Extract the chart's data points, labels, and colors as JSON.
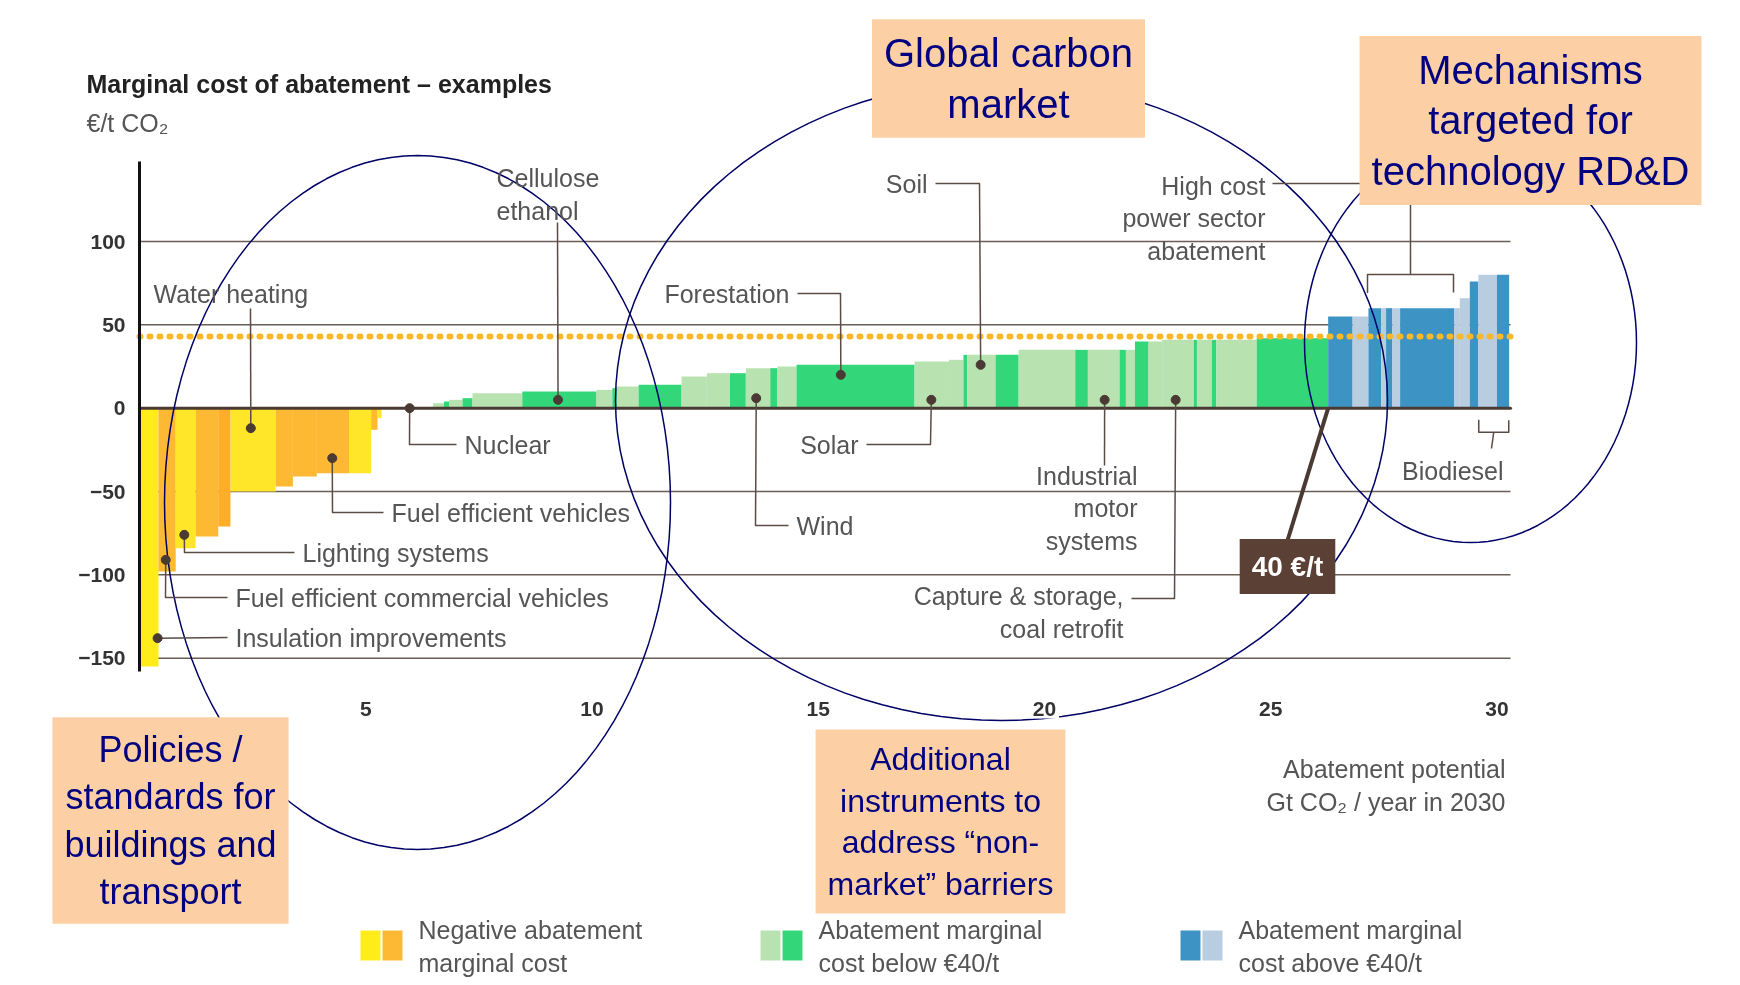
{
  "chart_data": {
    "type": "histogram",
    "title": "Marginal cost of abatement – examples",
    "ylabel": "€/t CO₂",
    "xlabel": "Abatement potential Gt CO₂ / year in 2030",
    "bins": [
      0,
      0.42,
      0.8,
      1.24,
      1.74,
      2.01,
      3.01,
      3.39,
      3.92,
      4.63,
      5.12,
      5.26,
      5.35,
      6.49,
      6.73,
      6.84,
      7.14,
      7.36,
      8.46,
      10.1,
      10.45,
      10.55,
      11.03,
      11.98,
      12.54,
      13.05,
      13.4,
      13.94,
      14.1,
      14.52,
      17.13,
      17.89,
      18.21,
      18.29,
      18.92,
      19.43,
      20.68,
      20.96,
      21.66,
      21.8,
      22.0,
      22.3,
      22.6,
      23.3,
      23.37,
      23.7,
      23.8,
      24.69,
      26.27,
      26.81,
      27.16,
      27.44,
      27.55,
      27.69,
      27.86,
      29.06,
      29.18,
      29.4,
      29.59,
      30.0,
      30.27
    ],
    "series": [
      {
        "name": "Negative abatement marginal cost",
        "values": [
          -155,
          -98,
          -84,
          -77,
          -71,
          -50,
          -47,
          -41,
          -39,
          -39,
          -13,
          -6,
          null,
          null,
          null,
          null,
          null,
          null,
          null,
          null,
          null,
          null,
          null,
          null,
          null,
          null,
          null,
          null,
          null,
          null,
          null,
          null,
          null,
          null,
          null,
          null,
          null,
          null,
          null,
          null,
          null,
          null,
          null,
          null,
          null,
          null,
          null,
          null,
          null,
          null,
          null,
          null,
          null,
          null,
          null,
          null,
          null,
          null,
          null,
          null
        ],
        "colors": [
          "#ffec1a",
          "#fdb933",
          "#ffe629",
          "#fdb933",
          "#fcae2a",
          "#ffe629",
          "#fdb933",
          "#fdb933",
          "#fdb933",
          "#ffe629",
          "#fdb933",
          "#ffe629",
          null,
          null,
          null,
          null,
          null,
          null,
          null,
          null,
          null,
          null,
          null,
          null,
          null,
          null,
          null,
          null,
          null,
          null,
          null,
          null,
          null,
          null,
          null,
          null,
          null,
          null,
          null,
          null,
          null,
          null,
          null,
          null,
          null,
          null,
          null,
          null,
          null,
          null,
          null,
          null,
          null,
          null,
          null,
          null,
          null,
          null,
          null,
          null
        ]
      },
      {
        "name": "Abatement marginal cost below €40/t",
        "values": [
          null,
          null,
          null,
          null,
          null,
          null,
          null,
          null,
          null,
          null,
          null,
          null,
          null,
          3,
          4,
          5,
          6,
          9,
          10,
          11,
          12,
          13,
          14,
          19,
          21,
          21,
          24,
          24,
          25,
          26,
          28,
          29,
          32,
          32,
          32,
          35,
          35,
          35,
          35,
          35,
          40,
          40,
          41,
          41,
          41,
          41,
          41,
          42,
          null,
          null,
          null,
          null,
          null,
          null,
          null,
          null,
          null,
          null,
          null,
          null
        ],
        "colors": [
          null,
          null,
          null,
          null,
          null,
          null,
          null,
          null,
          null,
          null,
          null,
          null,
          null,
          "#b8e3b0",
          "#34d67a",
          "#b8e3b0",
          "#34d67a",
          "#b8e3b0",
          "#34d67a",
          "#b8e3b0",
          "#34d67a",
          "#b8e3b0",
          "#34d67a",
          "#b8e3b0",
          "#b8e3b0",
          "#34d67a",
          "#b8e3b0",
          "#34d67a",
          "#b8e3b0",
          "#34d67a",
          "#b8e3b0",
          "#b8e3b0",
          "#34d67a",
          "#b8e3b0",
          "#34d67a",
          "#b8e3b0",
          "#34d67a",
          "#b8e3b0",
          "#34d67a",
          "#b8e3b0",
          "#34d67a",
          "#b8e3b0",
          "#b8e3b0",
          "#34d67a",
          "#b8e3b0",
          "#34d67a",
          "#b8e3b0",
          "#34d67a",
          null,
          null,
          null,
          null,
          null,
          null,
          null,
          null,
          null,
          null,
          null,
          null
        ]
      },
      {
        "name": "Abatement marginal cost above €40/t",
        "values": [
          null,
          null,
          null,
          null,
          null,
          null,
          null,
          null,
          null,
          null,
          null,
          null,
          null,
          null,
          null,
          null,
          null,
          null,
          null,
          null,
          null,
          null,
          null,
          null,
          null,
          null,
          null,
          null,
          null,
          null,
          null,
          null,
          null,
          null,
          null,
          null,
          null,
          null,
          null,
          null,
          null,
          null,
          null,
          null,
          null,
          null,
          null,
          null,
          55,
          55,
          60,
          60,
          60,
          60,
          60,
          60,
          66,
          76,
          80,
          80
        ],
        "colors": [
          null,
          null,
          null,
          null,
          null,
          null,
          null,
          null,
          null,
          null,
          null,
          null,
          null,
          null,
          null,
          null,
          null,
          null,
          null,
          null,
          null,
          null,
          null,
          null,
          null,
          null,
          null,
          null,
          null,
          null,
          null,
          null,
          null,
          null,
          null,
          null,
          null,
          null,
          null,
          null,
          null,
          null,
          null,
          null,
          null,
          null,
          null,
          null,
          "#3d94c4",
          "#b9cde0",
          "#3d94c4",
          "#b9cde0",
          "#3d94c4",
          "#b9cde0",
          "#3d94c4",
          "#b9cde0",
          "#b9cde0",
          "#3d94c4",
          "#b9cde0",
          "#3d94c4"
        ]
      }
    ],
    "xlim": [
      0,
      30.3
    ],
    "ylim": [
      -158,
      148
    ],
    "xticks": [
      5,
      10,
      15,
      20,
      25,
      30
    ],
    "yticks": [
      -150,
      -100,
      -50,
      0,
      50,
      100
    ],
    "grid": "y",
    "legend": "bottom",
    "ref_lines": [
      {
        "axis": "y",
        "value": 0,
        "color": "#4a3a33",
        "line_style": "solid"
      },
      {
        "axis": "y",
        "value": 43,
        "color": "#fbb829",
        "line_style": "dotted"
      }
    ],
    "annotations": [
      "Global carbon market",
      "Mechanisms targeted for technology RD&D",
      "Policies / standards for buildings and transport",
      "Additional instruments to address “non-market” barriers",
      {
        "text": "Water heating",
        "x": 2.46,
        "y": -12
      },
      {
        "text": "Cellulose ethanol",
        "x": 9.25,
        "y": 5
      },
      {
        "text": "Nuclear",
        "x": 5.97,
        "y": 0
      },
      {
        "text": "Fuel efficient vehicles",
        "x": 4.26,
        "y": -30
      },
      {
        "text": "Lighting systems",
        "x": 0.99,
        "y": -76
      },
      {
        "text": "Fuel efficient commercial vehicles",
        "x": 0.58,
        "y": -91
      },
      {
        "text": "Insulation improvements",
        "x": 0.4,
        "y": -138
      },
      {
        "text": "Forestation",
        "x": 15.5,
        "y": 20
      },
      {
        "text": "Soil",
        "x": 18.59,
        "y": 26
      },
      {
        "text": "Solar",
        "x": 17.5,
        "y": 5
      },
      {
        "text": "Wind",
        "x": 13.63,
        "y": 6
      },
      {
        "text": "Industrial motor systems",
        "x": 21.33,
        "y": 5
      },
      {
        "text": "Capture & storage, coal retrofit",
        "x": 22.9,
        "y": 5
      },
      "High cost power sector abatement",
      {
        "text": "Biodiesel",
        "x": 29.93,
        "y": 0
      },
      {
        "text": "40 €/t",
        "x": 26.27,
        "y": 0
      }
    ]
  }
}
